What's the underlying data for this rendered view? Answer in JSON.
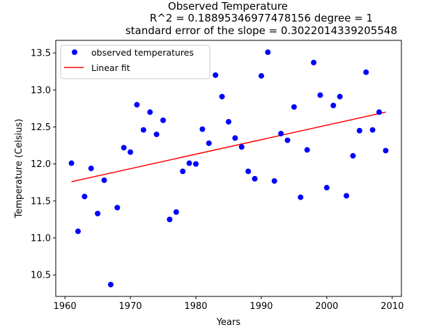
{
  "chart_data": {
    "type": "scatter",
    "title_lines": [
      "Observed Temperature",
      "R^2 = 0.18895346977478156 degree = 1",
      "standard error of the slope = 0.3022014339205548"
    ],
    "xlabel": "Years",
    "ylabel": "Temperature (Celsius)",
    "xlim": [
      1958.6,
      2011.4
    ],
    "ylim": [
      10.21,
      13.67
    ],
    "xticks": [
      1960,
      1970,
      1980,
      1990,
      2000,
      2010
    ],
    "yticks": [
      10.5,
      11.0,
      11.5,
      12.0,
      12.5,
      13.0,
      13.5
    ],
    "xtick_labels": [
      "1960",
      "1970",
      "1980",
      "1990",
      "2000",
      "2010"
    ],
    "ytick_labels": [
      "10.5",
      "11.0",
      "11.5",
      "12.0",
      "12.5",
      "13.0",
      "13.5"
    ],
    "grid": false,
    "legend_position": "top-left",
    "series": [
      {
        "name": "observed temperatures",
        "kind": "points",
        "color": "#0000ff",
        "x": [
          1961,
          1962,
          1963,
          1964,
          1965,
          1966,
          1967,
          1968,
          1969,
          1970,
          1971,
          1972,
          1973,
          1974,
          1975,
          1976,
          1977,
          1978,
          1979,
          1980,
          1981,
          1982,
          1983,
          1984,
          1985,
          1986,
          1987,
          1988,
          1989,
          1990,
          1991,
          1992,
          1993,
          1994,
          1995,
          1996,
          1997,
          1998,
          1999,
          2000,
          2001,
          2002,
          2003,
          2004,
          2005,
          2006,
          2007,
          2008,
          2009
        ],
        "y": [
          12.01,
          11.09,
          11.56,
          11.94,
          11.33,
          11.78,
          10.37,
          11.41,
          12.22,
          12.16,
          12.8,
          12.46,
          12.7,
          12.4,
          12.59,
          11.25,
          11.35,
          11.9,
          12.01,
          12.0,
          12.47,
          12.28,
          13.2,
          12.91,
          12.57,
          12.35,
          12.23,
          11.9,
          11.8,
          13.19,
          13.51,
          11.77,
          12.41,
          12.32,
          12.77,
          11.55,
          12.19,
          13.37,
          12.93,
          11.68,
          12.79,
          12.91,
          11.57,
          12.11,
          12.45,
          13.24,
          12.46,
          12.7,
          12.18
        ]
      },
      {
        "name": "Linear fit",
        "kind": "line",
        "color": "#ff0000",
        "x": [
          1961,
          2009
        ],
        "y": [
          11.76,
          12.7
        ]
      }
    ]
  }
}
